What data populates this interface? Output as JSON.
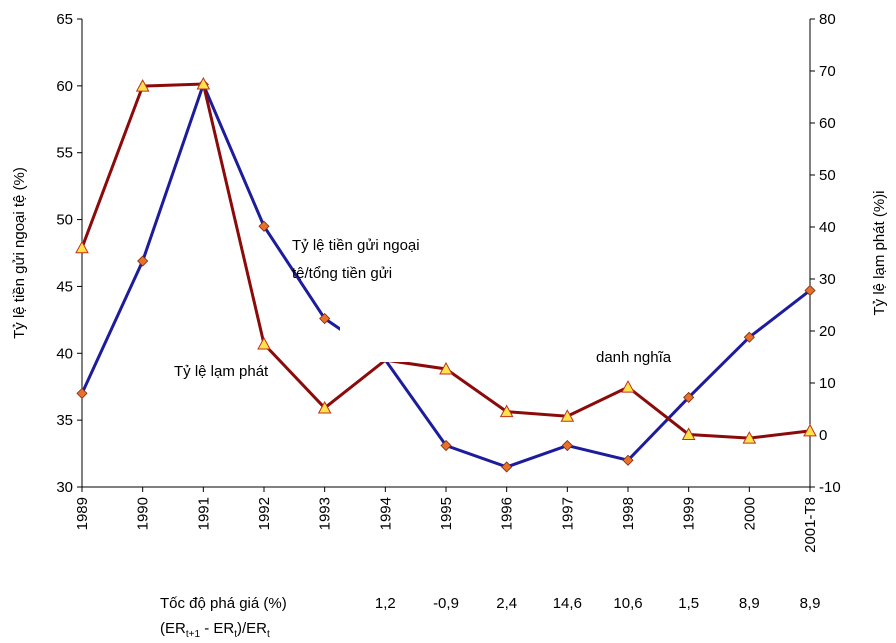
{
  "chart_data": {
    "type": "line",
    "categories": [
      "1989",
      "1990",
      "1991",
      "1992",
      "1993",
      "1994",
      "1995",
      "1996",
      "1997",
      "1998",
      "1999",
      "2000",
      "2001-T8"
    ],
    "ylabel": "Tỷ lệ tiền gửi ngoại tệ (%)",
    "y2label": "Tỷ lệ lạm phát (%)i",
    "ylim": [
      30,
      65
    ],
    "yticks": [
      30,
      35,
      40,
      45,
      50,
      55,
      60,
      65
    ],
    "y2lim": [
      -10,
      80
    ],
    "y2ticks": [
      -10,
      0,
      10,
      20,
      30,
      40,
      50,
      60,
      70,
      80
    ],
    "series": [
      {
        "name": "Tỷ lệ tiền gửi ngoại tệ/tổng tiền gửi",
        "color": "#1c1c9c",
        "axis": "y",
        "marker": "diamond",
        "values": [
          37,
          46.9,
          60.1,
          49.5,
          42.6,
          39.5,
          33.1,
          31.5,
          33.1,
          32,
          36.7,
          41.2,
          44.7
        ]
      },
      {
        "name": "Tỷ lệ lạm phát",
        "color": "#8b0a0a",
        "axis": "y2",
        "marker": "triangle",
        "values": [
          36,
          67.1,
          67.5,
          17.5,
          5.2,
          14.4,
          12.7,
          4.5,
          3.6,
          9.2,
          0.1,
          -0.6,
          0.8
        ]
      }
    ],
    "annotations": [
      "Tỷ lệ tiền gửi ngoại",
      "tệ/tổng tiền gửi",
      "Tỷ lệ lạm phát",
      "danh nghĩa"
    ],
    "devaluation": {
      "label": "Tốc độ phá giá (%)",
      "categories": [
        "1994",
        "1995",
        "1996",
        "1997",
        "1998",
        "1999",
        "2000",
        "2001-T8"
      ],
      "values": [
        "1,2",
        "-0,9",
        "2,4",
        "14,6",
        "10,6",
        "1,5",
        "8,9",
        "8,9"
      ],
      "formula": [
        "(ER",
        "t+1",
        " - ER",
        "t",
        ")/ER",
        "t"
      ]
    }
  }
}
